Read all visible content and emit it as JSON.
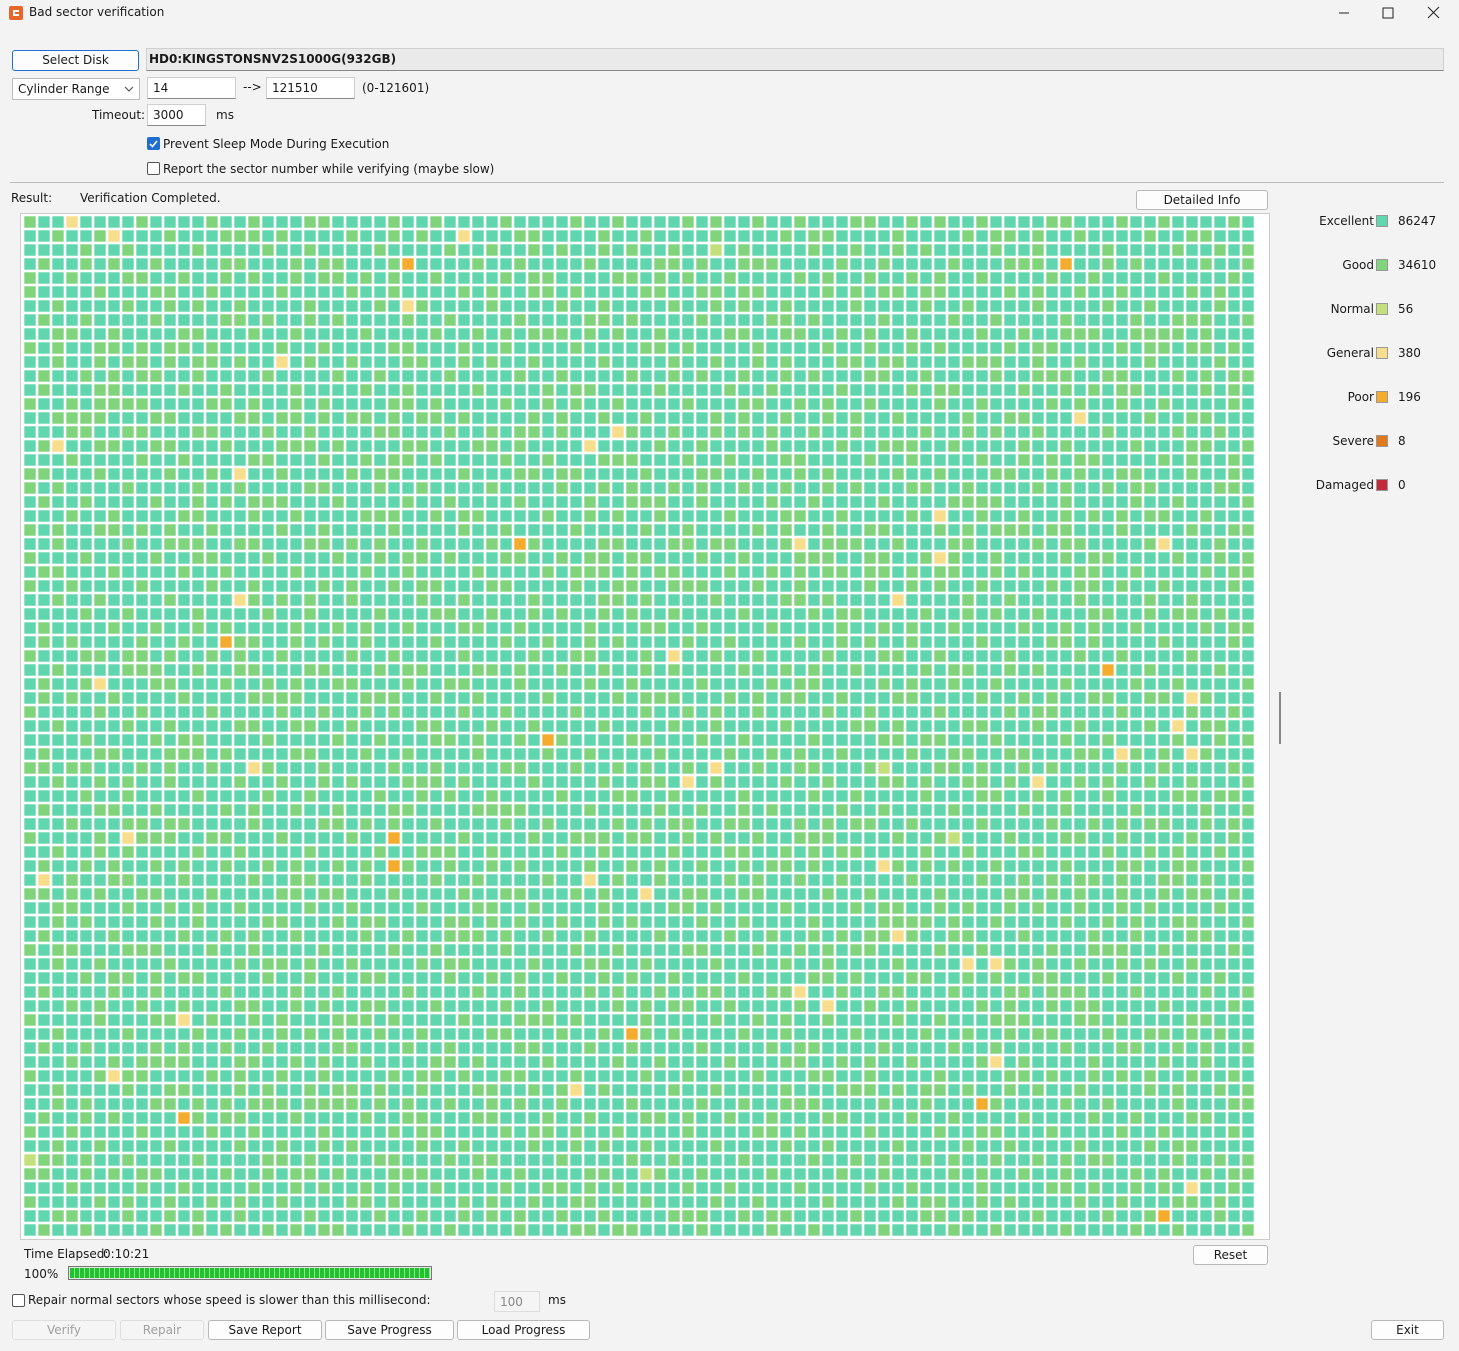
{
  "window": {
    "title": "Bad sector verification"
  },
  "disk": {
    "button": "Select Disk",
    "name": "HD0:KINGSTONSNV2S1000G(932GB)"
  },
  "range": {
    "mode": "Cylinder Range",
    "start": "14",
    "arrow": "-->",
    "end": "121510",
    "hint": "(0-121601)"
  },
  "timeout": {
    "label": "Timeout:",
    "value": "3000",
    "unit": "ms"
  },
  "options": [
    {
      "label": "Prevent Sleep Mode During Execution",
      "checked": true
    },
    {
      "label": "Report the sector number while verifying (maybe slow)",
      "checked": false
    }
  ],
  "result": {
    "label": "Result:",
    "status": "Verification Completed.",
    "button": "Detailed Info"
  },
  "legend": [
    {
      "name": "Excellent",
      "color": "#5fd6ae",
      "count": 86247
    },
    {
      "name": "Good",
      "color": "#7fd47c",
      "count": 34610
    },
    {
      "name": "Normal",
      "color": "#c3e07c",
      "count": 56
    },
    {
      "name": "General",
      "color": "#f7de8c",
      "count": 380
    },
    {
      "name": "Poor",
      "color": "#f4ac2e",
      "count": 196
    },
    {
      "name": "Severe",
      "color": "#e0791c",
      "count": 8
    },
    {
      "name": "Damaged",
      "color": "#c22a3a",
      "count": 0
    }
  ],
  "progress": {
    "time_label": "Time Elapsed:",
    "time": "0:10:21",
    "percent": 100,
    "percent_label": "100%",
    "reset": "Reset"
  },
  "repair": {
    "label": "Repair normal sectors whose speed is slower than this millisecond:",
    "value": "100",
    "unit": "ms",
    "checked": false
  },
  "buttons": [
    "Verify",
    "Repair",
    "Save Report",
    "Save Progress",
    "Load Progress",
    "Exit"
  ]
}
